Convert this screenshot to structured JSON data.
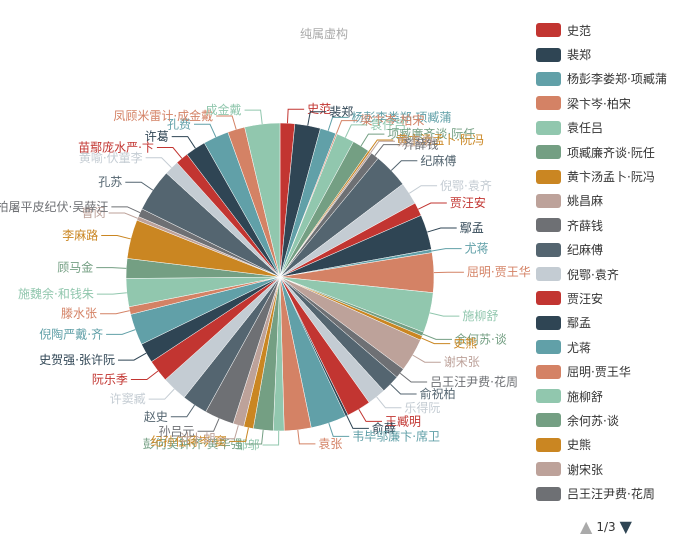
{
  "chart_data": {
    "type": "pie",
    "title": "纯属虚构",
    "palette": [
      "#c23531",
      "#2f4554",
      "#61a0a8",
      "#d48265",
      "#91c7ae",
      "#749f83",
      "#ca8622",
      "#bda29a",
      "#6e7074",
      "#546570",
      "#c4ccd3"
    ],
    "series": [
      {
        "name": "史范",
        "value": 2.3
      },
      {
        "name": "裴郑",
        "value": 4.0
      },
      {
        "name": "杨彭李娄郑·项臧蒲",
        "value": 2.5
      },
      {
        "name": "梁卞岑·柏宋",
        "value": 0.2
      },
      {
        "name": "袁任吕",
        "value": 2.8
      },
      {
        "name": "项臧廉齐谈·阮任",
        "value": 2.7
      },
      {
        "name": "黄卞汤孟卜·阮冯",
        "value": 0.3
      },
      {
        "name": "姚昌麻",
        "value": 0.3
      },
      {
        "name": "齐薛钱",
        "value": 1.3
      },
      {
        "name": "纪麻傅",
        "value": 5.5
      },
      {
        "name": "倪鄂·袁齐",
        "value": 3.5
      },
      {
        "name": "贾汪安",
        "value": 2.1
      },
      {
        "name": "鄢孟",
        "value": 5.5
      },
      {
        "name": "尤蒋",
        "value": 0.5
      },
      {
        "name": "屈明·贾王华",
        "value": 6.2
      },
      {
        "name": "施柳舒",
        "value": 6.3
      },
      {
        "name": "余何苏·谈",
        "value": 0.6
      },
      {
        "name": "史熊",
        "value": 0.7
      },
      {
        "name": "谢宋张",
        "value": 5.2
      },
      {
        "name": "吕王汪尹费·花周",
        "value": 1.6
      },
      {
        "name": "俞祝柏",
        "value": 2.9
      },
      {
        "name": "乐得阮",
        "value": 2.9
      },
      {
        "name": "王臧明",
        "value": 3.8
      },
      {
        "name": "俞薛",
        "value": 0.4
      },
      {
        "name": "韦毕邬廉卞·席卫",
        "value": 5.6
      },
      {
        "name": "袁张",
        "value": 4.2
      },
      {
        "name": "邹邬",
        "value": 1.7
      },
      {
        "name": "彭何吴钟齐·黄毕强",
        "value": 3.1
      },
      {
        "name": "纪孙任蒋岑·窦",
        "value": 1.5
      },
      {
        "name": "计卜胡",
        "value": 1.7
      },
      {
        "name": "孙吕元",
        "value": 4.6
      },
      {
        "name": "赵史",
        "value": 4.0
      },
      {
        "name": "许窦臧",
        "value": 4.0
      },
      {
        "name": "阮乐季",
        "value": 3.5
      },
      {
        "name": "史贺强·张许阮",
        "value": 3.1
      },
      {
        "name": "倪陶严戴·齐",
        "value": 4.9
      },
      {
        "name": "滕水张",
        "value": 1.2
      },
      {
        "name": "施魏余·和钱朱",
        "value": 4.4
      },
      {
        "name": "顾马金",
        "value": 3.1
      },
      {
        "name": "李麻路",
        "value": 6.1
      },
      {
        "name": "曹闵",
        "value": 0.6
      },
      {
        "name": "柏屠平皮纪伏·吴薛汪",
        "value": 1.3
      },
      {
        "name": "孔苏",
        "value": 6.7
      },
      {
        "name": "黄喻·伏童李",
        "value": 2.3
      },
      {
        "name": "苗鄢庞水严·卞",
        "value": 2.0
      },
      {
        "name": "许葛",
        "value": 3.2
      },
      {
        "name": "孔费",
        "value": 4.0
      },
      {
        "name": "凤顾米雷计·成金戴",
        "value": 2.7
      },
      {
        "name": "成金戴",
        "value": 5.5
      }
    ]
  },
  "legend": {
    "items": [
      "史范",
      "裴郑",
      "杨彭李娄郑·项臧蒲",
      "梁卞岑·柏宋",
      "袁任吕",
      "项臧廉齐谈·阮任",
      "黄卞汤孟卜·阮冯",
      "姚昌麻",
      "齐薛钱",
      "纪麻傅",
      "倪鄂·袁齐",
      "贾汪安",
      "鄢孟",
      "尤蒋",
      "屈明·贾王华",
      "施柳舒",
      "余何苏·谈",
      "史熊",
      "谢宋张",
      "吕王汪尹费·花周",
      "俞祝柏"
    ],
    "page_label": "1/3"
  }
}
